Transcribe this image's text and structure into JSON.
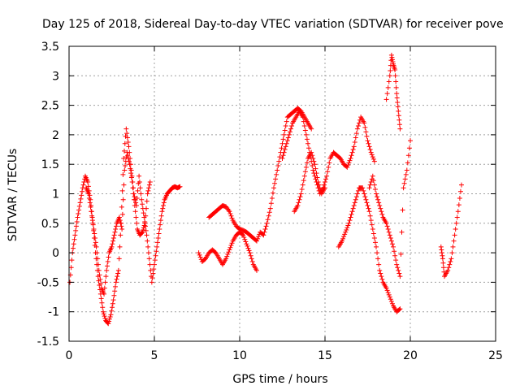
{
  "chart_data": {
    "type": "scatter",
    "title": "Day 125 of 2018, Sidereal Day-to-day VTEC variation (SDTVAR) for receiver pove",
    "xlabel": "GPS time / hours",
    "ylabel": "SDTVAR / TECUs",
    "xlim": [
      0,
      25
    ],
    "ylim": [
      -1.5,
      3.5
    ],
    "xticks": [
      0,
      5,
      10,
      15,
      20,
      25
    ],
    "xtick_labels": [
      "0",
      "5",
      "10",
      "15",
      "20",
      "25"
    ],
    "yticks": [
      -1.5,
      -1,
      -0.5,
      0,
      0.5,
      1,
      1.5,
      2,
      2.5,
      3,
      3.5
    ],
    "ytick_labels": [
      "-1.5",
      "-1",
      "-0.5",
      "0",
      "0.5",
      "1",
      "1.5",
      "2",
      "2.5",
      "3",
      "3.5"
    ],
    "grid": true,
    "marker": "+",
    "series": [
      {
        "name": "SDTVAR",
        "color": "#ff0000",
        "segments": [
          {
            "x": [
              0.05,
              0.2,
              0.35,
              0.5,
              0.65,
              0.8,
              0.95,
              1.1,
              1.25,
              1.4,
              1.55,
              1.7,
              1.85,
              2.0,
              2.15,
              2.3,
              2.45,
              2.6,
              2.75,
              2.9,
              3.05,
              3.2,
              3.35,
              3.5,
              3.65,
              3.8,
              3.95,
              4.1,
              4.25,
              4.4,
              4.55,
              4.7,
              4.85,
              5.0,
              5.15,
              5.3,
              5.45,
              5.6,
              5.75,
              5.9,
              6.05,
              6.2,
              6.35,
              6.5
            ],
            "y": [
              -0.5,
              0.0,
              0.3,
              0.6,
              0.85,
              1.1,
              1.3,
              1.2,
              0.9,
              0.5,
              0.0,
              -0.4,
              -0.7,
              -1.0,
              -1.15,
              -1.2,
              -1.05,
              -0.8,
              -0.5,
              -0.3,
              0.5,
              1.6,
              2.1,
              1.8,
              1.4,
              1.0,
              0.8,
              1.3,
              0.9,
              0.6,
              0.3,
              -0.1,
              -0.5,
              -0.2,
              0.1,
              0.4,
              0.7,
              0.9,
              1.0,
              1.05,
              1.1,
              1.12,
              1.1,
              1.12
            ]
          },
          {
            "x": [
              1.0,
              1.15,
              1.3,
              1.45,
              1.6,
              1.75,
              1.9,
              2.05,
              2.2,
              2.35,
              2.5,
              2.65,
              2.8,
              2.95,
              3.1,
              3.25,
              3.4,
              3.55,
              3.7,
              3.85,
              4.0,
              4.15,
              4.3,
              4.45,
              4.6,
              4.75
            ],
            "y": [
              1.1,
              1.0,
              0.7,
              0.4,
              0.1,
              -0.3,
              -0.6,
              -0.7,
              -0.3,
              0.0,
              0.1,
              0.3,
              0.5,
              0.6,
              0.4,
              1.4,
              1.7,
              1.5,
              1.2,
              0.8,
              0.4,
              0.3,
              0.35,
              0.5,
              1.0,
              1.2
            ]
          },
          {
            "x": [
              7.6,
              7.8,
              8.0,
              8.2,
              8.4,
              8.6,
              8.8,
              9.0,
              9.2,
              9.4,
              9.6,
              9.8,
              10.0,
              10.2,
              10.4,
              10.6,
              10.8,
              11.0
            ],
            "y": [
              0.0,
              -0.15,
              -0.1,
              0.0,
              0.05,
              0.0,
              -0.1,
              -0.2,
              -0.1,
              0.05,
              0.2,
              0.3,
              0.35,
              0.3,
              0.15,
              0.0,
              -0.2,
              -0.3
            ]
          },
          {
            "x": [
              8.2,
              8.4,
              8.6,
              8.8,
              9.0,
              9.2,
              9.4,
              9.6,
              9.8,
              10.0,
              10.2,
              10.4,
              10.6,
              10.8,
              11.0,
              11.2,
              11.4,
              11.6,
              11.8,
              12.0,
              12.2,
              12.4,
              12.6,
              12.8,
              13.0,
              13.2,
              13.4,
              13.6,
              13.8,
              14.0,
              14.2
            ],
            "y": [
              0.6,
              0.65,
              0.7,
              0.75,
              0.8,
              0.78,
              0.7,
              0.55,
              0.45,
              0.4,
              0.38,
              0.35,
              0.3,
              0.25,
              0.2,
              0.35,
              0.3,
              0.5,
              0.75,
              1.1,
              1.4,
              1.7,
              2.0,
              2.3,
              2.35,
              2.4,
              2.45,
              2.4,
              2.3,
              2.2,
              2.1
            ]
          },
          {
            "x": [
              12.5,
              12.7,
              12.9,
              13.1,
              13.3,
              13.5,
              13.7,
              13.9,
              14.1,
              14.3,
              14.5,
              14.7,
              14.9,
              15.1,
              15.3,
              15.5,
              15.7,
              15.9,
              16.1,
              16.3,
              16.5,
              16.7,
              16.9,
              17.1,
              17.3,
              17.5,
              17.7,
              17.9
            ],
            "y": [
              1.6,
              1.8,
              2.0,
              2.2,
              2.3,
              2.4,
              2.3,
              2.0,
              1.7,
              1.4,
              1.2,
              1.0,
              1.1,
              1.3,
              1.6,
              1.7,
              1.65,
              1.6,
              1.5,
              1.45,
              1.6,
              1.8,
              2.1,
              2.3,
              2.2,
              1.9,
              1.7,
              1.55
            ]
          },
          {
            "x": [
              13.2,
              13.4,
              13.6,
              13.8,
              14.0,
              14.2,
              14.4,
              14.6,
              14.8,
              15.0
            ],
            "y": [
              0.7,
              0.8,
              1.0,
              1.3,
              1.6,
              1.7,
              1.5,
              1.2,
              1.0,
              1.1
            ]
          },
          {
            "x": [
              15.8,
              16.0,
              16.2,
              16.4,
              16.6,
              16.8,
              17.0,
              17.2,
              17.4,
              17.6,
              17.8,
              18.0,
              18.2,
              18.4,
              18.6,
              18.8,
              19.0,
              19.2,
              19.4
            ],
            "y": [
              0.1,
              0.2,
              0.35,
              0.5,
              0.7,
              0.9,
              1.1,
              1.1,
              0.9,
              0.7,
              0.4,
              0.1,
              -0.3,
              -0.5,
              -0.6,
              -0.75,
              -0.9,
              -1.0,
              -0.95
            ]
          },
          {
            "x": [
              17.6,
              17.8,
              18.0,
              18.2,
              18.4,
              18.6,
              18.8,
              19.0,
              19.2,
              19.4,
              19.6,
              19.8,
              20.0
            ],
            "y": [
              1.1,
              1.3,
              1.0,
              0.8,
              0.6,
              0.5,
              0.3,
              0.1,
              -0.2,
              -0.4,
              1.1,
              1.4,
              1.9
            ]
          },
          {
            "x": [
              18.6,
              18.8,
              18.9,
              19.0,
              19.1,
              19.2,
              19.3,
              19.4
            ],
            "y": [
              2.6,
              3.0,
              3.35,
              3.2,
              3.1,
              2.7,
              2.4,
              2.1
            ]
          },
          {
            "x": [
              21.8,
              21.9,
              22.0,
              22.2,
              22.4,
              22.6,
              22.8,
              23.0
            ],
            "y": [
              0.1,
              -0.1,
              -0.4,
              -0.3,
              -0.1,
              0.3,
              0.7,
              1.15
            ]
          }
        ]
      }
    ]
  }
}
